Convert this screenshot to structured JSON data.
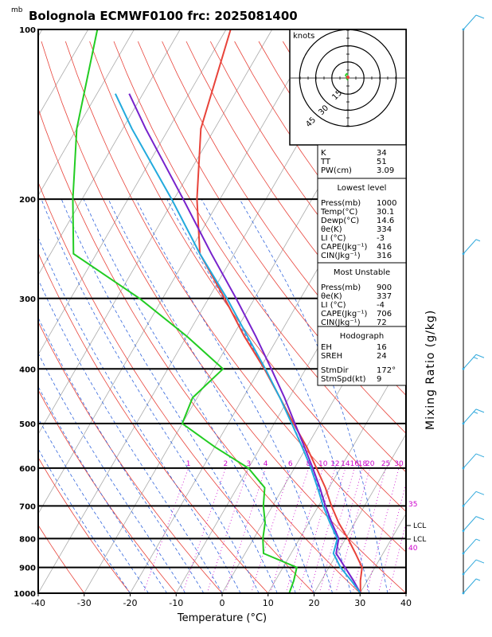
{
  "page": {
    "title": "Bolognola ECMWF0100  frc: 2025081400",
    "units_top": "mb"
  },
  "colors": {
    "temperature": "#e8433a",
    "dewpoint": "#22cc22",
    "parcel": "#7722cc",
    "wetbulb": "#22aadd",
    "isotherm": "#aaaaaa",
    "dry_adiabat": "#e8433a",
    "moist_adiabat": "#3366dd",
    "mixing_ratio": "#cc00cc",
    "barb": "#33aadd",
    "hodograph_line": "#22cc22"
  },
  "chart_data": {
    "type": "line",
    "title": "Bolognola ECMWF0100  frc: 2025081400",
    "xlabel": "Temperature (°C)",
    "ylabel": "mb",
    "right_label": "Mixing Ratio (g/kg)",
    "xlim": [
      -40,
      40
    ],
    "ylim": [
      1000,
      100
    ],
    "y_scale": "log",
    "skew": "skew-T log-P",
    "x_ticks": [
      -40,
      -30,
      -20,
      -10,
      0,
      10,
      20,
      30,
      40
    ],
    "pressure_levels": [
      100,
      200,
      300,
      400,
      500,
      600,
      700,
      800,
      900,
      1000
    ],
    "mixing_ratio_labels_top": [
      "1",
      "2",
      "3",
      "4",
      "6",
      "8",
      "10",
      "12",
      "14",
      "16",
      "18",
      "20",
      "25",
      "30"
    ],
    "mixing_ratio_labels_right": [
      "35",
      "40"
    ],
    "lcl_labels": [
      "LCL",
      "LCL"
    ],
    "series": [
      {
        "name": "temperature",
        "p": [
          1000,
          950,
          900,
          850,
          800,
          750,
          700,
          650,
          600,
          550,
          500,
          450,
          400,
          350,
          300,
          250,
          200,
          150,
          100
        ],
        "t": [
          30.1,
          28.5,
          27.2,
          24.0,
          20.5,
          16.5,
          12.8,
          9.2,
          4.8,
          0.0,
          -5.8,
          -12.0,
          -19.0,
          -27.5,
          -36.5,
          -47.5,
          -55.0,
          -63.0,
          -69.0
        ]
      },
      {
        "name": "dewpoint",
        "p": [
          1000,
          950,
          900,
          850,
          800,
          750,
          700,
          650,
          600,
          550,
          500,
          450,
          400,
          350,
          300,
          250,
          200,
          150,
          100
        ],
        "t": [
          14.6,
          14.0,
          13.0,
          4.0,
          2.0,
          0.5,
          -2.0,
          -4.0,
          -10.0,
          -20.0,
          -30.0,
          -31.0,
          -28.0,
          -40.0,
          -55.0,
          -75.0,
          -82.0,
          -90.0,
          -98.0
        ]
      },
      {
        "name": "parcel",
        "p": [
          1000,
          950,
          900,
          850,
          800,
          750,
          700,
          650,
          600,
          550,
          500,
          450,
          400,
          350,
          300,
          250,
          200,
          150,
          130
        ],
        "t": [
          30.1,
          27.0,
          23.5,
          19.8,
          18.5,
          15.0,
          11.5,
          8.0,
          4.0,
          -0.5,
          -5.5,
          -11.0,
          -17.5,
          -25.0,
          -34.0,
          -45.0,
          -58.0,
          -75.0,
          -83.0
        ]
      },
      {
        "name": "wetbulb",
        "p": [
          1000,
          950,
          900,
          850,
          800,
          750,
          700,
          650,
          600,
          550,
          500,
          450,
          400,
          350,
          300,
          250,
          200,
          150,
          130
        ],
        "t": [
          30.1,
          26.5,
          22.5,
          19.2,
          18.2,
          14.6,
          11.0,
          7.5,
          3.6,
          -1.0,
          -6.2,
          -12.0,
          -18.8,
          -26.8,
          -36.0,
          -47.5,
          -60.5,
          -78.0,
          -86.0
        ]
      }
    ],
    "winds": {
      "p": [
        1000,
        925,
        850,
        775,
        700,
        600,
        500,
        400,
        250,
        100
      ],
      "speed_kt": [
        8,
        10,
        8,
        10,
        12,
        12,
        15,
        18,
        5,
        10
      ]
    },
    "hodograph": {
      "units_label": "knots",
      "rings_kt": [
        "15",
        "30",
        "45"
      ],
      "u": [
        0.0,
        -1.0,
        -1.5,
        -2.0,
        -2.5,
        -2.0,
        -1.0,
        0.0
      ],
      "v": [
        -2.0,
        -1.0,
        1.5,
        3.0,
        2.0,
        3.0,
        4.0,
        3.0
      ]
    }
  },
  "indices": {
    "general": [
      {
        "label": "K",
        "value": "34"
      },
      {
        "label": "TT",
        "value": "51"
      },
      {
        "label": "PW(cm)",
        "value": "3.09"
      }
    ],
    "lowest_level": {
      "header": "Lowest level",
      "rows": [
        {
          "label": "Press(mb)",
          "value": "1000"
        },
        {
          "label": "Temp(°C)",
          "value": "30.1"
        },
        {
          "label": "Dewp(°C)",
          "value": "14.6"
        },
        {
          "label": "θe(K)",
          "value": "334"
        },
        {
          "label": "LI (°C)",
          "value": "-3"
        },
        {
          "label": "CAPE(Jkg⁻¹)",
          "value": "416"
        },
        {
          "label": "CIN(Jkg⁻¹)",
          "value": "316"
        }
      ]
    },
    "most_unstable": {
      "header": "Most Unstable",
      "rows": [
        {
          "label": "Press(mb)",
          "value": "900"
        },
        {
          "label": "θe(K)",
          "value": "337"
        },
        {
          "label": "LI (°C)",
          "value": "-4"
        },
        {
          "label": "CAPE(Jkg⁻¹)",
          "value": "706"
        },
        {
          "label": "CIN(Jkg⁻¹)",
          "value": "72"
        }
      ]
    },
    "hodograph_box": {
      "header": "Hodograph",
      "rows": [
        {
          "label": "EH",
          "value": "16"
        },
        {
          "label": "SREH",
          "value": "24"
        },
        {
          "label": "StmDir",
          "value": "172°"
        },
        {
          "label": "StmSpd(kt)",
          "value": "9"
        }
      ]
    }
  }
}
